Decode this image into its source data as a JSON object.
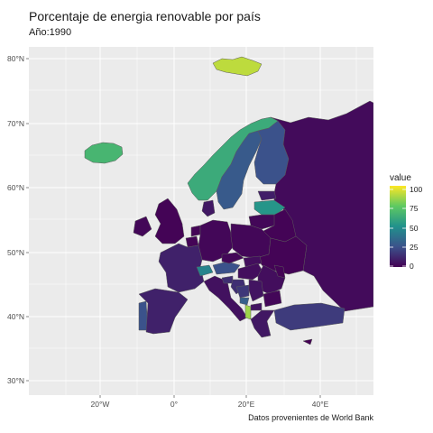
{
  "header": {
    "title": "Porcentaje de energia renovable por país",
    "subtitle": "Año:1990"
  },
  "caption": "Datos provenientes de World Bank",
  "chart_data": {
    "type": "choropleth",
    "fill_variable": "value",
    "panel_background": "#ebebeb",
    "grid": true,
    "x_ticks": [
      "20°W",
      "0°",
      "20°E",
      "40°E"
    ],
    "y_ticks": [
      "80°N",
      "70°N",
      "60°N",
      "50°N",
      "40°N",
      "30°N"
    ],
    "xlim": [
      -38,
      55
    ],
    "ylim": [
      28,
      82
    ],
    "legend": {
      "title": "value",
      "position": "right",
      "range": [
        0,
        100
      ],
      "breaks": [
        "100",
        "75",
        "50",
        "25",
        "0"
      ],
      "palette": [
        "#440154",
        "#3b528b",
        "#21918c",
        "#5ec962",
        "#fde725"
      ]
    },
    "regions": [
      {
        "name": "Iceland",
        "value": 66
      },
      {
        "name": "Svalbard",
        "value": 90
      },
      {
        "name": "Norway",
        "value": 61
      },
      {
        "name": "Sweden",
        "value": 28
      },
      {
        "name": "Finland",
        "value": 25
      },
      {
        "name": "Russia",
        "value": 3
      },
      {
        "name": "Estonia",
        "value": 9
      },
      {
        "name": "Latvia",
        "value": 52
      },
      {
        "name": "Lithuania",
        "value": 2
      },
      {
        "name": "Belarus",
        "value": 1
      },
      {
        "name": "Denmark",
        "value": 7
      },
      {
        "name": "United Kingdom",
        "value": 1
      },
      {
        "name": "Ireland",
        "value": 2
      },
      {
        "name": "Netherlands",
        "value": 1
      },
      {
        "name": "Belgium",
        "value": 1
      },
      {
        "name": "Germany",
        "value": 2
      },
      {
        "name": "Poland",
        "value": 2
      },
      {
        "name": "Ukraine",
        "value": 1
      },
      {
        "name": "France",
        "value": 10
      },
      {
        "name": "Switzerland",
        "value": 45
      },
      {
        "name": "Austria",
        "value": 25
      },
      {
        "name": "Czechia",
        "value": 2
      },
      {
        "name": "Slovakia",
        "value": 4
      },
      {
        "name": "Hungary",
        "value": 4
      },
      {
        "name": "Romania",
        "value": 4
      },
      {
        "name": "Moldova",
        "value": 1
      },
      {
        "name": "Italy",
        "value": 5
      },
      {
        "name": "Slovenia",
        "value": 14
      },
      {
        "name": "Croatia",
        "value": 14
      },
      {
        "name": "Bosnia and Herzegovina",
        "value": 17
      },
      {
        "name": "Serbia",
        "value": 6
      },
      {
        "name": "Montenegro",
        "value": 30
      },
      {
        "name": "Albania",
        "value": 85
      },
      {
        "name": "North Macedonia",
        "value": 6
      },
      {
        "name": "Bulgaria",
        "value": 2
      },
      {
        "name": "Greece",
        "value": 7
      },
      {
        "name": "Portugal",
        "value": 25
      },
      {
        "name": "Spain",
        "value": 10
      },
      {
        "name": "Turkey",
        "value": 18
      },
      {
        "name": "Cyprus",
        "value": 0
      }
    ]
  }
}
